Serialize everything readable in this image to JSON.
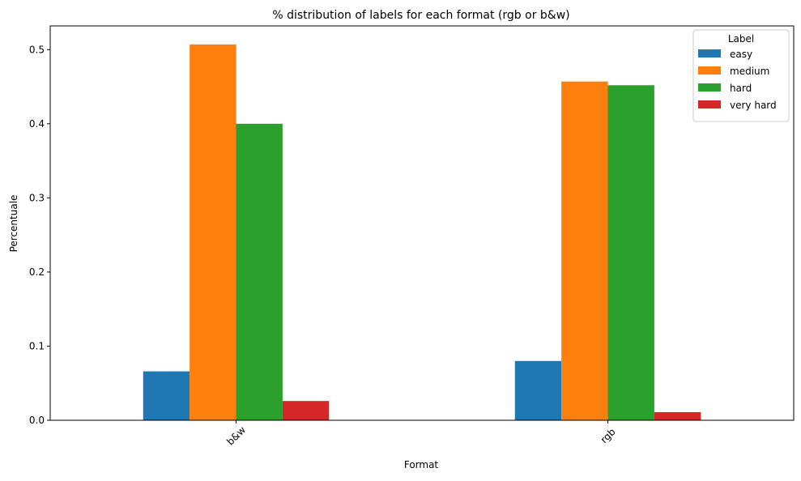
{
  "chart_data": {
    "type": "bar",
    "title": "% distribution of labels for each format (rgb or b&w)",
    "xlabel": "Format",
    "ylabel": "Percentuale",
    "categories": [
      "b&w",
      "rgb"
    ],
    "ylim": [
      0,
      0.532
    ],
    "yticks": [
      "0.0",
      "0.1",
      "0.2",
      "0.3",
      "0.4",
      "0.5"
    ],
    "grid": false,
    "legend": {
      "title": "Label",
      "placement": "top-right"
    },
    "series": [
      {
        "name": "easy",
        "color": "#1f77b4",
        "values": [
          0.066,
          0.08
        ]
      },
      {
        "name": "medium",
        "color": "#ff7f0e",
        "values": [
          0.507,
          0.457
        ]
      },
      {
        "name": "hard",
        "color": "#2ca02c",
        "values": [
          0.4,
          0.452
        ]
      },
      {
        "name": "very hard",
        "color": "#d62728",
        "values": [
          0.026,
          0.011
        ]
      }
    ]
  }
}
